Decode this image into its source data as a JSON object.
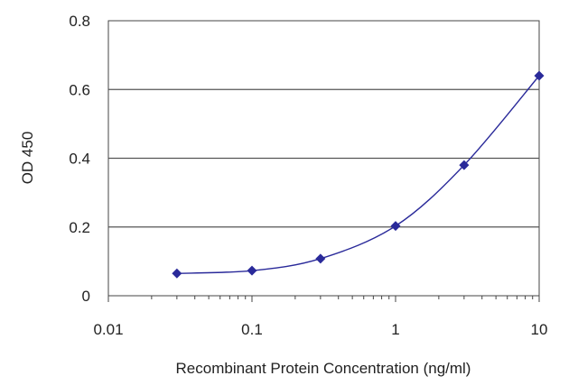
{
  "chart_data": {
    "type": "line",
    "title": "",
    "xlabel": "Recombinant Protein Concentration (ng/ml)",
    "ylabel": "OD 450",
    "x_scale": "log",
    "xlim": [
      0.01,
      10
    ],
    "ylim": [
      0,
      0.8
    ],
    "x_ticks": [
      0.01,
      0.1,
      1,
      10
    ],
    "x_tick_labels": [
      "0.01",
      "0.1",
      "1",
      "10"
    ],
    "y_ticks": [
      0,
      0.2,
      0.4,
      0.6,
      0.8
    ],
    "y_tick_labels": [
      "0",
      "0.2",
      "0.4",
      "0.6",
      "0.8"
    ],
    "grid": "horizontal",
    "legend": "none",
    "series": [
      {
        "x": [
          0.03,
          0.1,
          0.3,
          1,
          3,
          10
        ],
        "values": [
          0.065,
          0.073,
          0.108,
          0.203,
          0.38,
          0.64
        ],
        "color": "#2a2a9a"
      }
    ]
  }
}
